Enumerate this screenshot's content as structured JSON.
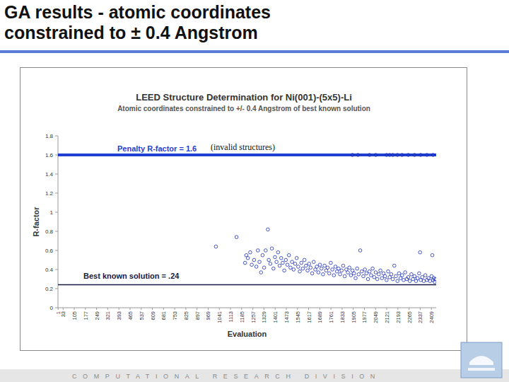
{
  "slide_title": [
    "GA results - atomic coordinates",
    "constrained to ± 0.4 Angstrom"
  ],
  "footer": "COMPUTATIONAL RESEARCH DIVISION",
  "chart_data": {
    "type": "scatter",
    "title": "LEED Structure Determination for Ni(001)-(5x5)-Li",
    "subtitle": "Atomic coordinates constrained to +/- 0.4 Angstrom of best known solution",
    "x_label": "Evaluation",
    "y_label": "R-factor",
    "color": "#1a2fb8",
    "marker": "circle-open",
    "grid": false,
    "xlim": [
      0,
      2440
    ],
    "ylim": [
      0,
      1.8
    ],
    "xticks": [
      1,
      33,
      105,
      177,
      249,
      321,
      393,
      465,
      537,
      609,
      681,
      753,
      825,
      897,
      969,
      1041,
      1113,
      1185,
      1257,
      1329,
      1401,
      1473,
      1545,
      1617,
      1689,
      1761,
      1833,
      1905,
      1977,
      2049,
      2121,
      2193,
      2265,
      2337,
      2409
    ],
    "yticks": [
      0,
      0.2,
      0.4,
      0.6,
      0.8,
      1,
      1.2,
      1.4,
      1.6,
      1.8
    ],
    "reference_lines": [
      {
        "value": 1.6,
        "label": "Penalty R-factor = 1.6",
        "note": "(invalid structures)",
        "color": "#1f3fd0"
      },
      {
        "value": 0.24,
        "label": "Best known solution = .24",
        "color": "#1a1a40"
      }
    ],
    "x": [
      1019,
      1152,
      1207,
      1215,
      1225,
      1240,
      1250,
      1265,
      1280,
      1290,
      1300,
      1310,
      1320,
      1330,
      1340,
      1354,
      1360,
      1370,
      1380,
      1390,
      1400,
      1410,
      1420,
      1430,
      1440,
      1450,
      1460,
      1470,
      1480,
      1490,
      1500,
      1510,
      1520,
      1530,
      1540,
      1550,
      1560,
      1570,
      1580,
      1590,
      1600,
      1610,
      1620,
      1630,
      1640,
      1650,
      1660,
      1670,
      1680,
      1690,
      1700,
      1710,
      1720,
      1730,
      1740,
      1750,
      1760,
      1770,
      1780,
      1790,
      1800,
      1810,
      1820,
      1830,
      1840,
      1850,
      1860,
      1870,
      1880,
      1890,
      1900,
      1910,
      1920,
      1930,
      1940,
      1950,
      1960,
      1970,
      1980,
      1990,
      2000,
      2010,
      2020,
      2030,
      2040,
      2050,
      2060,
      2070,
      2080,
      2090,
      2100,
      2110,
      2120,
      2130,
      2140,
      2150,
      2160,
      2170,
      2180,
      2190,
      2200,
      2210,
      2220,
      2230,
      2240,
      2250,
      2260,
      2270,
      2280,
      2290,
      2300,
      2310,
      2320,
      2330,
      2336,
      2340,
      2350,
      2360,
      2370,
      2380,
      2390,
      2400,
      2410,
      2415,
      2420,
      2425,
      2430,
      2435,
      1900,
      1935,
      2010,
      2050,
      2120,
      2140,
      2160,
      2190,
      2220,
      2260,
      2300,
      2340,
      2380,
      2420
    ],
    "values": [
      0.64,
      0.74,
      0.47,
      0.55,
      0.52,
      0.58,
      0.45,
      0.5,
      0.43,
      0.6,
      0.48,
      0.37,
      0.55,
      0.42,
      0.6,
      0.82,
      0.5,
      0.46,
      0.62,
      0.41,
      0.53,
      0.48,
      0.58,
      0.44,
      0.52,
      0.47,
      0.39,
      0.5,
      0.45,
      0.55,
      0.42,
      0.48,
      0.4,
      0.46,
      0.52,
      0.43,
      0.38,
      0.47,
      0.41,
      0.5,
      0.44,
      0.39,
      0.46,
      0.42,
      0.36,
      0.48,
      0.4,
      0.43,
      0.37,
      0.45,
      0.41,
      0.35,
      0.44,
      0.39,
      0.42,
      0.36,
      0.47,
      0.4,
      0.34,
      0.43,
      0.38,
      0.41,
      0.35,
      0.39,
      0.44,
      0.33,
      0.4,
      0.37,
      0.42,
      0.34,
      0.39,
      0.36,
      0.31,
      0.41,
      0.35,
      0.6,
      0.38,
      0.33,
      0.4,
      0.36,
      0.3,
      0.38,
      0.34,
      0.41,
      0.32,
      0.37,
      0.3,
      0.35,
      0.39,
      0.31,
      0.36,
      0.33,
      0.29,
      0.38,
      0.32,
      0.35,
      0.3,
      0.44,
      0.33,
      0.28,
      0.36,
      0.31,
      0.34,
      0.29,
      0.37,
      0.3,
      0.32,
      0.28,
      0.35,
      0.3,
      0.33,
      0.28,
      0.31,
      0.36,
      0.58,
      0.29,
      0.32,
      0.28,
      0.34,
      0.29,
      0.31,
      0.28,
      0.33,
      0.55,
      0.29,
      0.31,
      0.27,
      0.3,
      1.6,
      1.6,
      1.6,
      1.6,
      1.6,
      1.6,
      1.6,
      1.6,
      1.6,
      1.6,
      1.6,
      1.6,
      1.6,
      1.6
    ]
  }
}
